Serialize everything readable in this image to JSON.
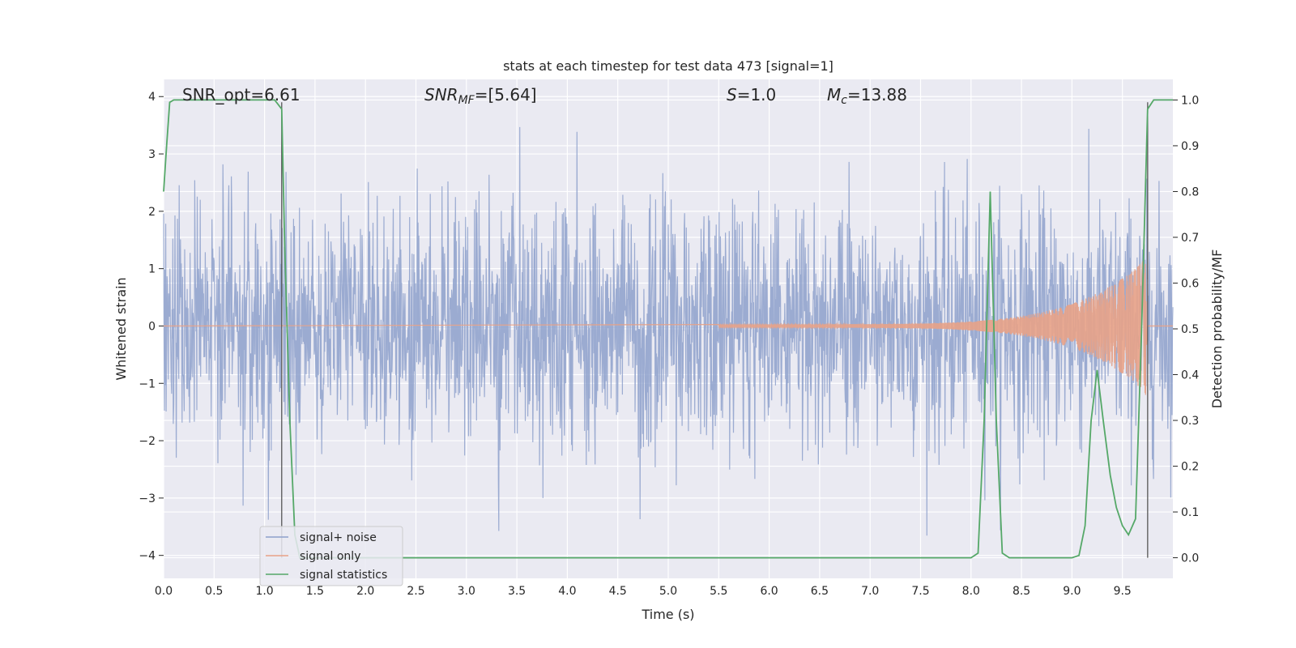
{
  "chart_data": {
    "type": "line",
    "title": "stats at each timestep for test data 473 [signal=1]",
    "xlabel": "Time (s)",
    "ylabel": "Whitened strain",
    "ylabel_right": "Detection probability/MF",
    "xlim": [
      0,
      10
    ],
    "ylim": [
      -4.4,
      4.3
    ],
    "ylim_right": [
      -0.045,
      1.045
    ],
    "x_ticks": [
      "0.0",
      "0.5",
      "1.0",
      "1.5",
      "2.0",
      "2.5",
      "3.0",
      "3.5",
      "4.0",
      "4.5",
      "5.0",
      "5.5",
      "6.0",
      "6.5",
      "7.0",
      "7.5",
      "8.0",
      "8.5",
      "9.0",
      "9.5"
    ],
    "y_ticks": [
      "−4",
      "−3",
      "−2",
      "−1",
      "0",
      "1",
      "2",
      "3",
      "4"
    ],
    "y_ticks_right": [
      "0.0",
      "0.1",
      "0.2",
      "0.3",
      "0.4",
      "0.5",
      "0.6",
      "0.7",
      "0.8",
      "0.9",
      "1.0"
    ],
    "grid": true,
    "legend": "lower-left",
    "annotations": {
      "snr_opt": "SNR_opt=6.61",
      "snr_mf_label": "SNR",
      "snr_mf_sub": "MF",
      "snr_mf_value": "=[5.64]",
      "s_label": "S",
      "s_value": "=1.0",
      "mc_label": "M",
      "mc_sub": "c",
      "mc_value": "=13.88"
    },
    "vertical_lines_x": [
      1.17,
      9.75
    ],
    "series": [
      {
        "name": "signal+ noise",
        "color": "#8da0cb",
        "noise_envelope": {
          "sigma": 1.0,
          "min": -3.8,
          "max": 3.9
        }
      },
      {
        "name": "signal only",
        "color": "#e8a287",
        "chirp": {
          "start_x": 5.5,
          "end_x": 9.74,
          "peak_amplitude": 1.25
        }
      },
      {
        "name": "signal statistics",
        "color": "#55a868",
        "axis": "right",
        "x": [
          0.0,
          0.03,
          0.06,
          0.1,
          0.2,
          0.4,
          0.6,
          0.8,
          1.0,
          1.1,
          1.17,
          1.2,
          1.25,
          1.3,
          1.35,
          1.4,
          1.5,
          2.0,
          3.0,
          4.0,
          5.0,
          6.0,
          7.0,
          7.9,
          8.0,
          8.07,
          8.13,
          8.19,
          8.25,
          8.31,
          8.38,
          8.5,
          9.0,
          9.07,
          9.13,
          9.19,
          9.25,
          9.31,
          9.38,
          9.44,
          9.5,
          9.56,
          9.63,
          9.69,
          9.75,
          9.81,
          9.88,
          9.94,
          10.0
        ],
        "y": [
          0.8,
          0.9,
          0.995,
          1.0,
          1.0,
          1.0,
          1.0,
          1.0,
          1.0,
          1.0,
          0.98,
          0.68,
          0.3,
          0.05,
          0.0,
          0.0,
          0.0,
          0.0,
          0.0,
          0.0,
          0.0,
          0.0,
          0.0,
          0.0,
          0.0,
          0.01,
          0.3,
          0.8,
          0.3,
          0.01,
          0.0,
          0.0,
          0.0,
          0.005,
          0.07,
          0.3,
          0.41,
          0.3,
          0.18,
          0.11,
          0.07,
          0.05,
          0.085,
          0.5,
          0.98,
          1.0,
          1.0,
          1.0,
          1.0
        ]
      }
    ]
  }
}
